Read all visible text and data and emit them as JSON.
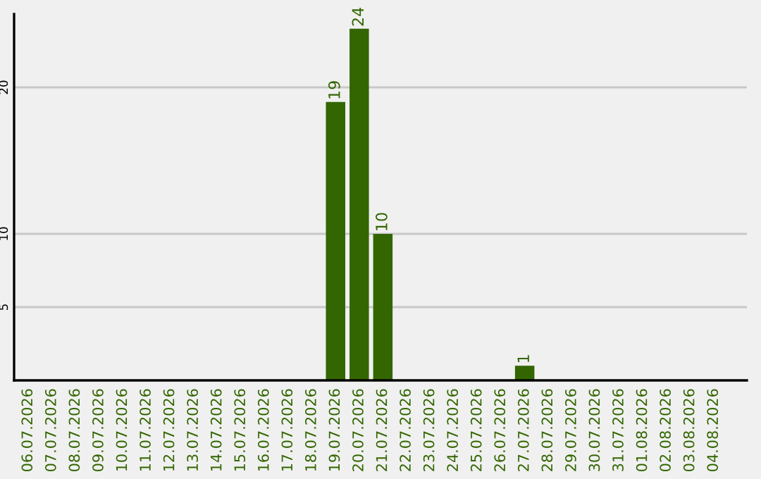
{
  "chart_data": {
    "type": "bar",
    "categories": [
      "06.07.2026",
      "07.07.2026",
      "08.07.2026",
      "09.07.2026",
      "10.07.2026",
      "11.07.2026",
      "12.07.2026",
      "13.07.2026",
      "14.07.2026",
      "15.07.2026",
      "16.07.2026",
      "17.07.2026",
      "18.07.2026",
      "19.07.2026",
      "20.07.2026",
      "21.07.2026",
      "22.07.2026",
      "23.07.2026",
      "24.07.2026",
      "25.07.2026",
      "26.07.2026",
      "27.07.2026",
      "28.07.2026",
      "29.07.2026",
      "30.07.2026",
      "31.07.2026",
      "01.08.2026",
      "02.08.2026",
      "03.08.2026",
      "04.08.2026"
    ],
    "values": [
      0,
      0,
      0,
      0,
      0,
      0,
      0,
      0,
      0,
      0,
      0,
      0,
      0,
      19,
      24,
      10,
      0,
      0,
      0,
      0,
      0,
      1,
      0,
      0,
      0,
      0,
      0,
      0,
      0,
      0
    ],
    "value_labels": [
      null,
      null,
      null,
      null,
      null,
      null,
      null,
      null,
      null,
      null,
      null,
      null,
      null,
      "19",
      "24",
      "10",
      null,
      null,
      null,
      null,
      null,
      "1",
      null,
      null,
      null,
      null,
      null,
      null,
      null,
      null
    ],
    "color": "#336600",
    "ylim": [
      0,
      25
    ],
    "yticks": [
      5,
      10,
      20
    ],
    "grid": "y"
  }
}
